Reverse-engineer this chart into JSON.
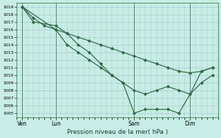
{
  "xlabel": "Pression niveau de la mer( hPa )",
  "bg_color": "#c8ece6",
  "grid_color": "#9dc4be",
  "line_color": "#2d6b45",
  "ylim": [
    1004.5,
    1019.5
  ],
  "yticks": [
    1005,
    1006,
    1007,
    1008,
    1009,
    1010,
    1011,
    1012,
    1013,
    1014,
    1015,
    1016,
    1017,
    1018,
    1019
  ],
  "xlim": [
    0,
    72
  ],
  "xtick_positions": [
    2,
    14,
    42,
    62
  ],
  "xtick_labels": [
    "Ven",
    "Lun",
    "Sam",
    "Dim"
  ],
  "vline_positions": [
    2,
    14,
    42,
    62
  ],
  "series": [
    {
      "x": [
        2,
        6,
        10,
        14,
        18,
        22,
        26,
        30,
        34,
        38,
        42,
        46,
        50,
        54,
        58,
        62,
        66,
        70
      ],
      "y": [
        1019,
        1017.5,
        1016.5,
        1016,
        1015.5,
        1015,
        1014.5,
        1014,
        1013.5,
        1013,
        1012.5,
        1012,
        1011.5,
        1011,
        1010.5,
        1010.3,
        1010.5,
        1011
      ],
      "marker": "D",
      "markersize": 2.2,
      "linewidth": 0.9
    },
    {
      "x": [
        2,
        6,
        14,
        18,
        22,
        26,
        30,
        34,
        38,
        42,
        46,
        50,
        54,
        58,
        62,
        66,
        70
      ],
      "y": [
        1019,
        1017,
        1016.5,
        1015.5,
        1014,
        1013,
        1011.5,
        1010,
        1009,
        1005,
        1005.5,
        1005.5,
        1005.5,
        1005,
        1007.5,
        1010.5,
        1011
      ],
      "marker": "D",
      "markersize": 2.2,
      "linewidth": 0.9
    },
    {
      "x": [
        2,
        14,
        18,
        22,
        26,
        30,
        34,
        38,
        42,
        46,
        50,
        54,
        58,
        62,
        66,
        70
      ],
      "y": [
        1019,
        1016,
        1014,
        1013,
        1012,
        1011,
        1010,
        1009,
        1008,
        1007.5,
        1008,
        1008.5,
        1008,
        1007.5,
        1009,
        1010
      ],
      "marker": "D",
      "markersize": 2.2,
      "linewidth": 0.9
    }
  ]
}
